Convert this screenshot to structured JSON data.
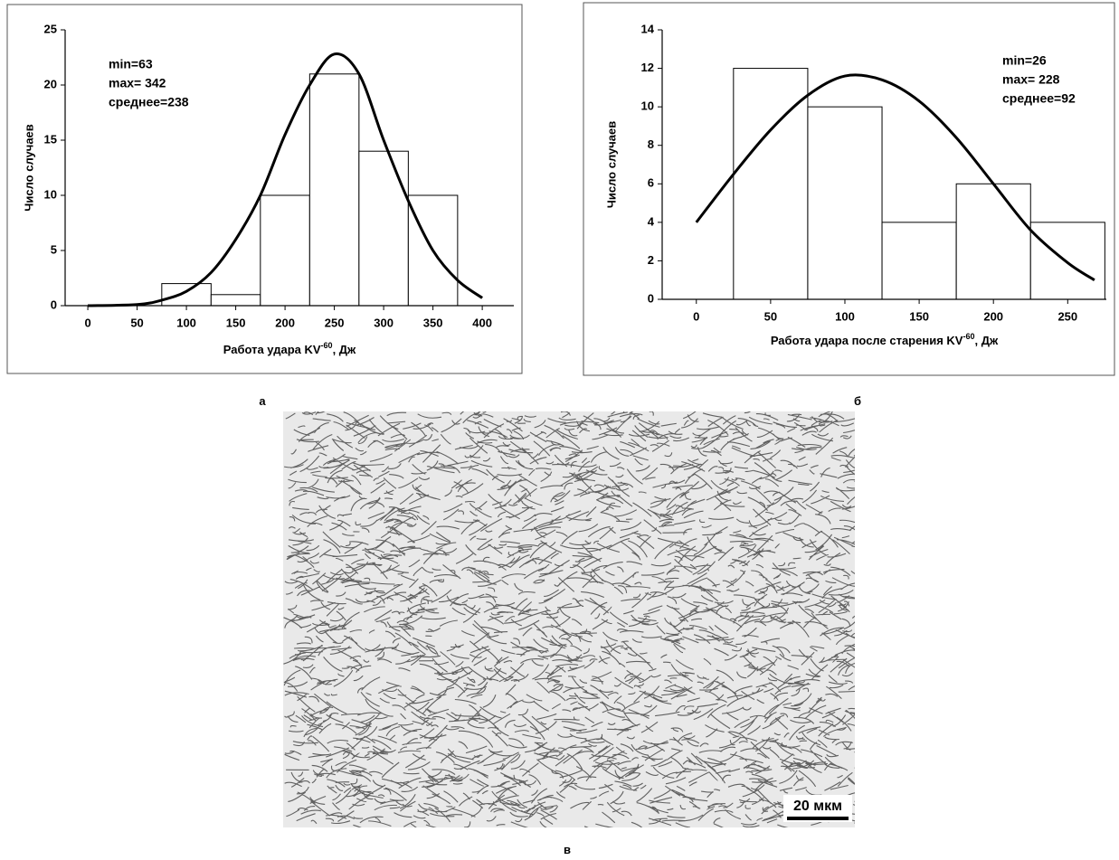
{
  "chart_data": [
    {
      "type": "histogram",
      "y_label": "Число случаев",
      "x_label": [
        "Работа удара  KV",
        "-60",
        ", Дж"
      ],
      "annotations": [
        "min=63",
        "max= 342",
        "среднее=238"
      ],
      "bins": [
        75,
        125,
        175,
        225,
        275,
        325,
        375
      ],
      "values": [
        2,
        1,
        10,
        21,
        14,
        10
      ],
      "bar_color": "#ffffff",
      "line_color": "#000000",
      "curve": {
        "x": [
          0,
          50,
          75,
          100,
          125,
          150,
          175,
          200,
          225,
          250,
          275,
          300,
          325,
          350,
          375,
          400
        ],
        "y": [
          0,
          0.1,
          0.5,
          1.3,
          3,
          6,
          10,
          15.5,
          20,
          22.8,
          21,
          15,
          9.5,
          5,
          2.3,
          0.7
        ]
      },
      "xlim": [
        -23,
        432
      ],
      "xticks": [
        0,
        50,
        100,
        150,
        200,
        250,
        300,
        350,
        400
      ],
      "ylim": [
        0,
        25
      ],
      "yticks": [
        0,
        5,
        10,
        15,
        20,
        25
      ]
    },
    {
      "type": "histogram",
      "y_label": "Число случаев",
      "x_label": [
        "Работа удара после старения KV",
        "-60",
        ", Дж"
      ],
      "annotations": [
        "min=26",
        "max= 228",
        "среднее=92"
      ],
      "bins": [
        25,
        75,
        125,
        175,
        225,
        275
      ],
      "values": [
        12,
        10,
        4,
        6,
        4
      ],
      "bar_color": "#ffffff",
      "line_color": "#000000",
      "curve": {
        "x": [
          0,
          25,
          50,
          75,
          100,
          125,
          150,
          175,
          200,
          225,
          250,
          268
        ],
        "y": [
          4,
          6.5,
          8.8,
          10.6,
          11.6,
          11.4,
          10.3,
          8.4,
          6,
          3.6,
          1.9,
          1
        ]
      },
      "xlim": [
        -23,
        276
      ],
      "xticks": [
        0,
        50,
        100,
        150,
        200,
        250
      ],
      "ylim": [
        0,
        14
      ],
      "yticks": [
        0,
        2,
        4,
        6,
        8,
        10,
        12,
        14
      ]
    }
  ],
  "panel_labels": [
    "а",
    "б",
    "в"
  ],
  "micrograph": {
    "scale_bar": "20 мкм"
  }
}
